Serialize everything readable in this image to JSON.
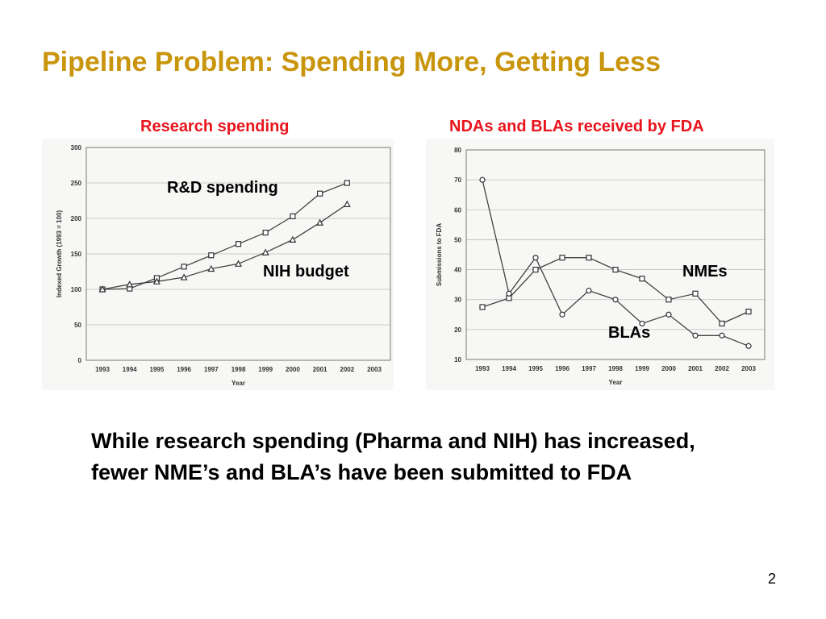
{
  "slide": {
    "title": "Pipeline Problem: Spending More, Getting Less",
    "body_text": "While research spending (Pharma and NIH) has increased, fewer NME’s and BLA’s have been submitted to FDA",
    "page_number": "2",
    "title_color": "#C8950C",
    "heading_color": "#E8141C"
  },
  "chart_data": [
    {
      "type": "line",
      "heading": "Research spending",
      "xlabel": "Year",
      "ylabel": "Indexed Growth (1993 = 100)",
      "x": [
        "1993",
        "1994",
        "1995",
        "1996",
        "1997",
        "1998",
        "1999",
        "2000",
        "2001",
        "2002",
        "2003"
      ],
      "ylim": [
        0,
        300
      ],
      "yticks": [
        0,
        50,
        100,
        150,
        200,
        250,
        300
      ],
      "grid": true,
      "series": [
        {
          "name": "R&D spending",
          "marker": "square",
          "values": [
            100,
            101,
            116,
            132,
            148,
            164,
            180,
            203,
            235,
            250,
            null
          ]
        },
        {
          "name": "NIH budget",
          "marker": "triangle",
          "values": [
            100,
            107,
            111,
            117,
            129,
            136,
            152,
            170,
            194,
            220,
            null
          ]
        }
      ]
    },
    {
      "type": "line",
      "heading": "NDAs and BLAs received by FDA",
      "xlabel": "Year",
      "ylabel": "Submissions to FDA",
      "x": [
        "1993",
        "1994",
        "1995",
        "1996",
        "1997",
        "1998",
        "1999",
        "2000",
        "2001",
        "2002",
        "2003"
      ],
      "ylim": [
        10,
        80
      ],
      "yticks": [
        10,
        20,
        30,
        40,
        50,
        60,
        70,
        80
      ],
      "grid": true,
      "series": [
        {
          "name": "NMEs",
          "marker": "square",
          "values": [
            27.5,
            30.5,
            40,
            44,
            44,
            40,
            37,
            30,
            32,
            22,
            26
          ]
        },
        {
          "name": "BLAs",
          "marker": "circle",
          "values": [
            70,
            32,
            44,
            25,
            33,
            30,
            22,
            25,
            18,
            18,
            14.5
          ]
        }
      ]
    }
  ]
}
